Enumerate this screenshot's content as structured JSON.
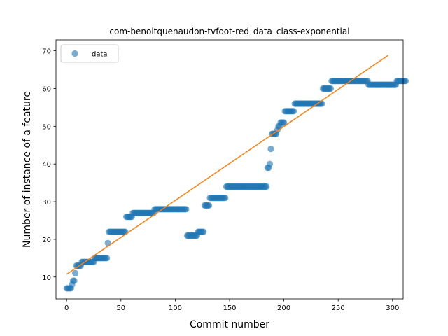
{
  "chart_data": {
    "type": "scatter",
    "title": "com-benoitquenaudon-tvfoot-red_data_class-exponential",
    "xlabel": "Commit number",
    "ylabel": "Number of instance of a feature",
    "xlim": [
      -9.8,
      309.8
    ],
    "ylim": [
      4.2,
      72.9
    ],
    "xticks": [
      0,
      50,
      100,
      150,
      200,
      250,
      300
    ],
    "yticks": [
      10,
      20,
      30,
      40,
      50,
      60,
      70
    ],
    "grid": false,
    "legend": {
      "position": "top-left",
      "entries": [
        "data"
      ]
    },
    "series": [
      {
        "name": "data",
        "kind": "scatter",
        "color": "#1f77b4",
        "x_start": 0,
        "y": [
          7,
          7,
          7,
          7,
          7,
          8,
          9,
          9,
          11,
          13,
          13,
          13,
          13,
          13,
          14,
          14,
          14,
          14,
          14,
          14,
          14,
          14,
          14,
          14,
          14,
          14,
          15,
          15,
          15,
          15,
          15,
          15,
          15,
          15,
          15,
          15,
          15,
          15,
          19,
          22,
          22,
          22,
          22,
          22,
          22,
          22,
          22,
          22,
          22,
          22,
          22,
          22,
          22,
          22,
          22,
          26,
          26,
          26,
          26,
          26,
          26,
          27,
          27,
          27,
          27,
          27,
          27,
          27,
          27,
          27,
          27,
          27,
          27,
          27,
          27,
          27,
          27,
          27,
          27,
          27,
          27,
          28,
          28,
          28,
          28,
          28,
          28,
          28,
          28,
          28,
          28,
          28,
          28,
          28,
          28,
          28,
          28,
          28,
          28,
          28,
          28,
          28,
          28,
          28,
          28,
          28,
          28,
          28,
          28,
          28,
          28,
          21,
          21,
          21,
          21,
          21,
          21,
          21,
          21,
          21,
          21,
          22,
          22,
          22,
          22,
          22,
          22,
          29,
          29,
          29,
          29,
          29,
          31,
          31,
          31,
          31,
          31,
          31,
          31,
          31,
          31,
          31,
          31,
          31,
          31,
          31,
          31,
          34,
          34,
          34,
          34,
          34,
          34,
          34,
          34,
          34,
          34,
          34,
          34,
          34,
          34,
          34,
          34,
          34,
          34,
          34,
          34,
          34,
          34,
          34,
          34,
          34,
          34,
          34,
          34,
          34,
          34,
          34,
          34,
          34,
          34,
          34,
          34,
          34,
          34,
          39,
          39,
          40,
          44,
          48,
          48,
          48,
          48,
          48,
          49,
          50,
          50,
          51,
          51,
          51,
          51,
          54,
          54,
          54,
          54,
          54,
          54,
          54,
          54,
          54,
          56,
          56,
          56,
          56,
          56,
          56,
          56,
          56,
          56,
          56,
          56,
          56,
          56,
          56,
          56,
          56,
          56,
          56,
          56,
          56,
          56,
          56,
          56,
          56,
          56,
          56,
          60,
          60,
          60,
          60,
          60,
          60,
          60,
          60,
          62,
          62,
          62,
          62,
          62,
          62,
          62,
          62,
          62,
          62,
          62,
          62,
          62,
          62,
          62,
          62,
          62,
          62,
          62,
          62,
          62,
          62,
          62,
          62,
          62,
          62,
          62,
          62,
          62,
          62,
          62,
          62,
          62,
          62,
          61,
          61,
          61,
          61,
          61,
          61,
          61,
          61,
          61,
          61,
          61,
          61,
          61,
          61,
          61,
          61,
          61,
          61,
          61,
          61,
          61,
          61,
          61,
          61,
          61,
          61,
          62,
          62,
          62,
          62,
          62,
          62,
          62,
          62,
          62
        ]
      },
      {
        "name": "",
        "kind": "line",
        "color": "#ff7f0e",
        "x": [
          0,
          296
        ],
        "y": [
          10.7,
          68.8
        ]
      }
    ]
  }
}
